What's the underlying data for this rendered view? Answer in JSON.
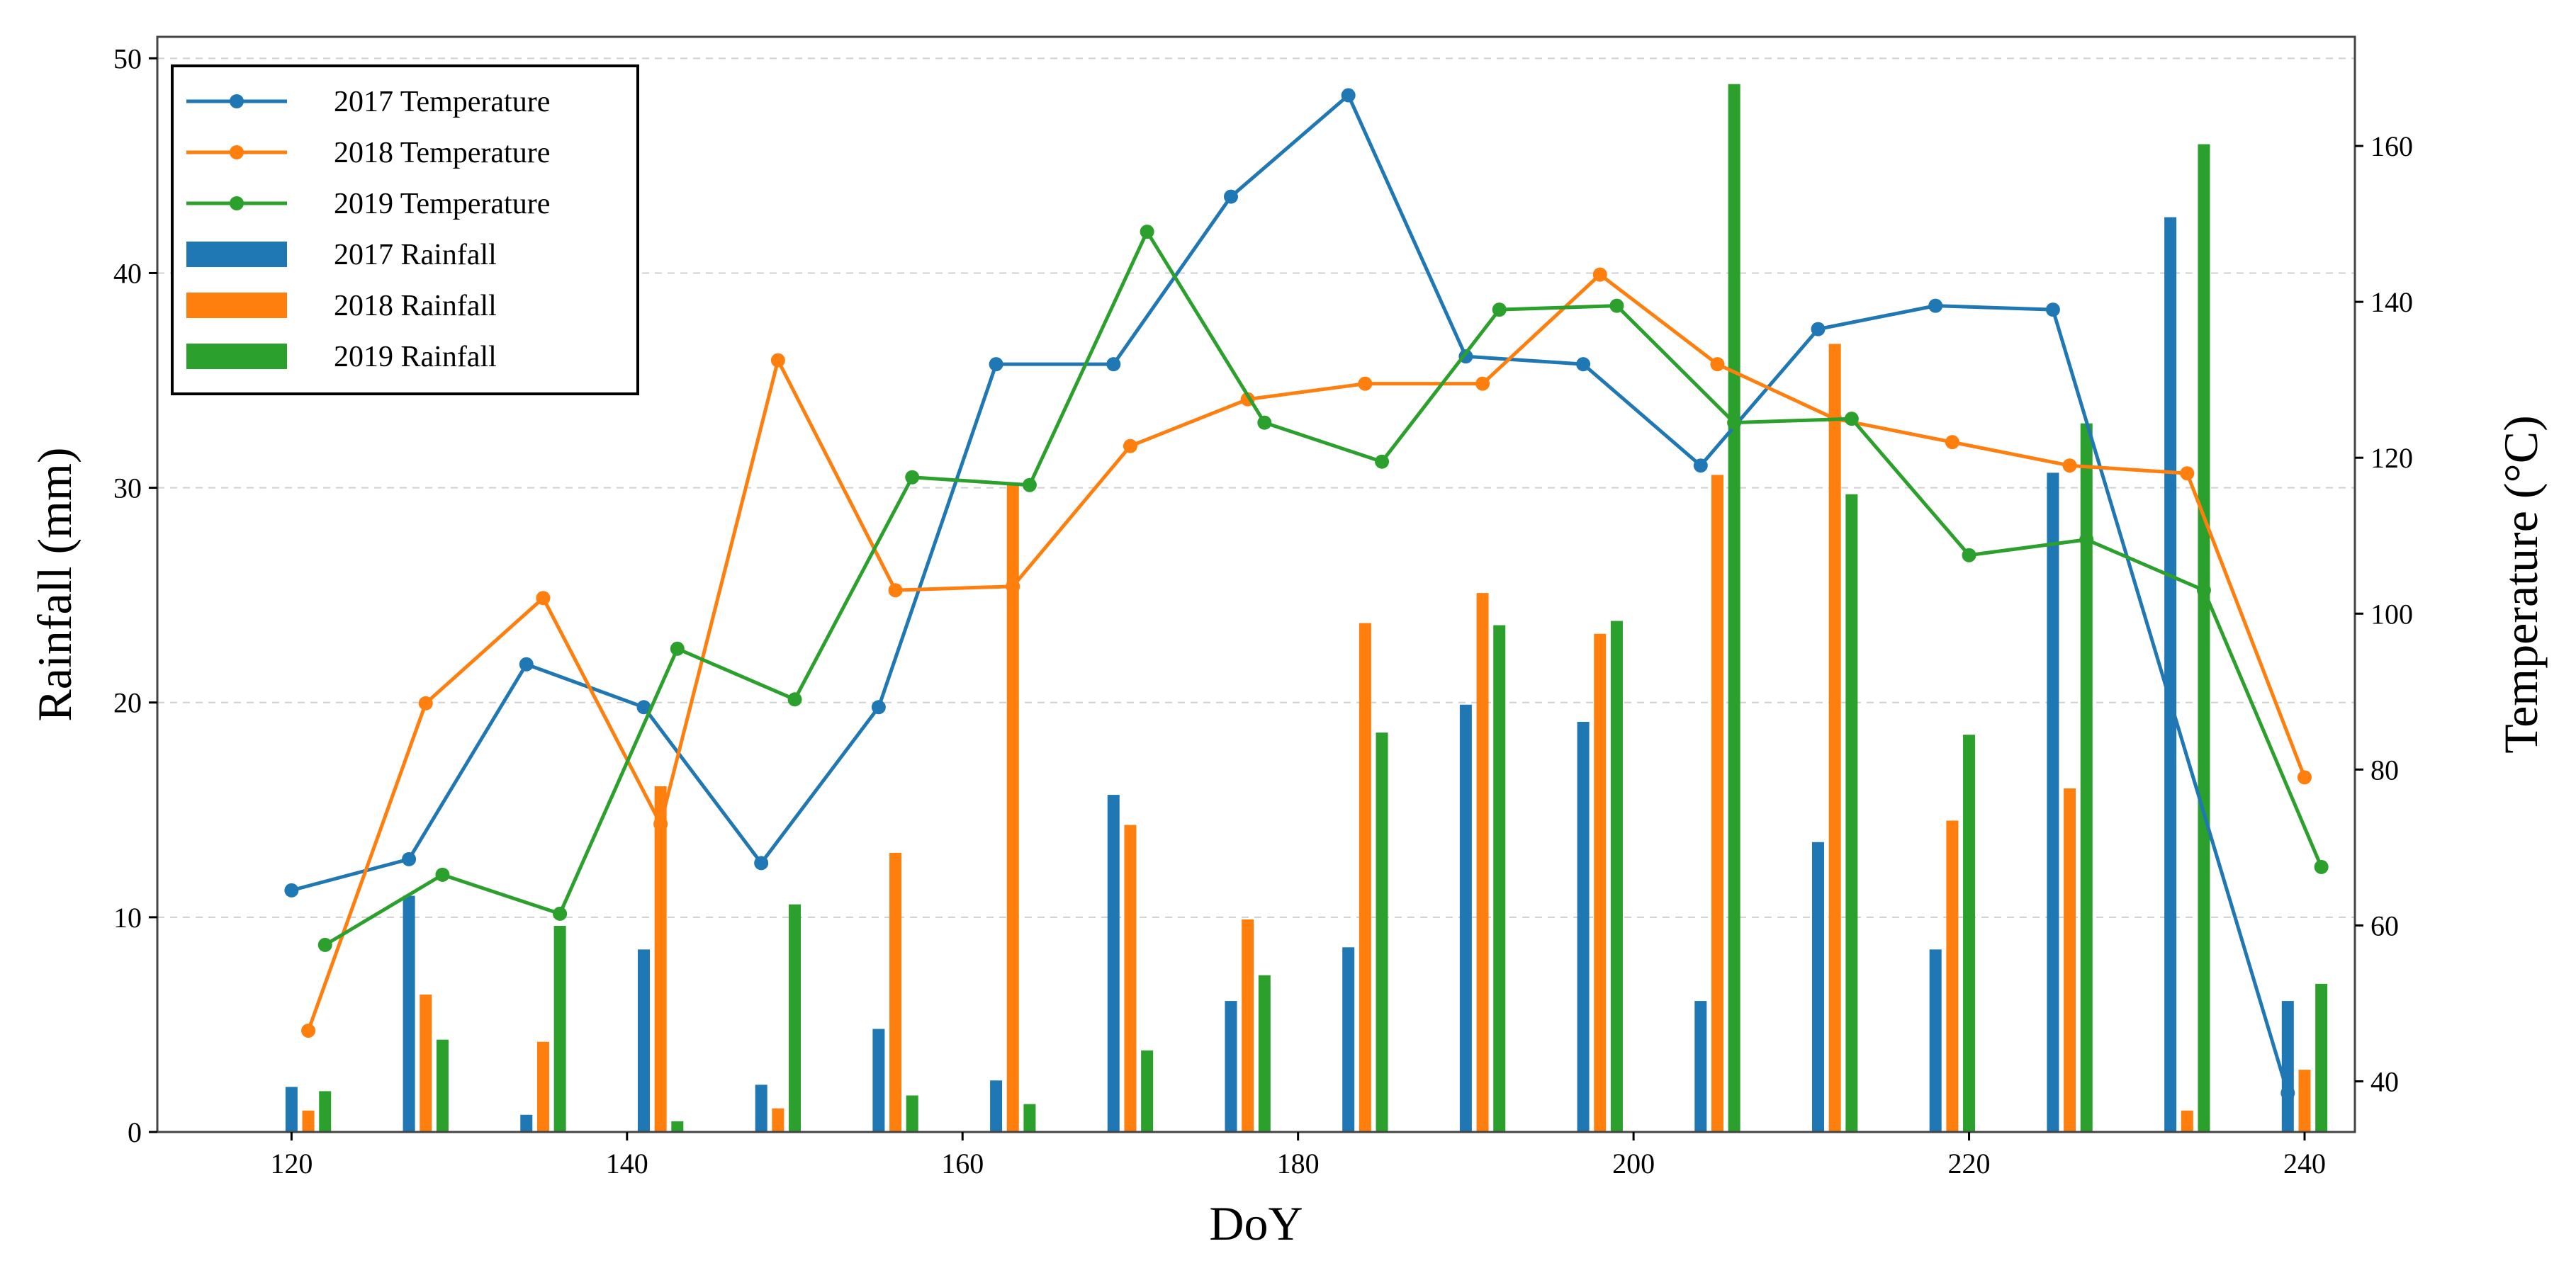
{
  "chart_data": {
    "type": "bar+line",
    "title": "",
    "xlabel": "DoY",
    "ylabel": "Rainfall (mm)",
    "y2label": "Temperature (°C)",
    "xlim": [
      112,
      243
    ],
    "ylim": [
      0,
      51
    ],
    "y2lim": [
      33.5,
      174
    ],
    "x_ticks": [
      120,
      140,
      160,
      180,
      200,
      220,
      240
    ],
    "y_ticks": [
      0,
      10,
      20,
      30,
      40,
      50
    ],
    "y2_ticks": [
      40,
      60,
      80,
      100,
      120,
      140,
      160
    ],
    "grid": "horizontal dashed",
    "legend_position": "top-left",
    "bar_series": [
      {
        "name": "2017 Rainfall",
        "color": "#1f77b4",
        "x": [
          120,
          127,
          134,
          141,
          148,
          155,
          162,
          169,
          176,
          183,
          190,
          197,
          204,
          211,
          218,
          225,
          232,
          239
        ],
        "values": [
          2.1,
          11.0,
          0.8,
          8.5,
          2.2,
          4.8,
          2.4,
          15.7,
          6.1,
          8.6,
          19.9,
          19.1,
          6.1,
          13.5,
          8.5,
          30.7,
          42.6,
          6.1
        ]
      },
      {
        "name": "2018 Rainfall",
        "color": "#ff7f0e",
        "x": [
          121,
          128,
          135,
          142,
          149,
          156,
          163,
          170,
          177,
          184,
          191,
          198,
          205,
          212,
          219,
          226,
          233,
          240
        ],
        "values": [
          1.0,
          6.4,
          4.2,
          16.1,
          1.1,
          13.0,
          30.2,
          14.3,
          9.9,
          23.7,
          25.1,
          23.2,
          30.6,
          36.7,
          14.5,
          16.0,
          1.0,
          2.9
        ]
      },
      {
        "name": "2019 Rainfall",
        "color": "#2ca02c",
        "x": [
          122,
          129,
          136,
          143,
          150,
          157,
          164,
          171,
          178,
          185,
          192,
          199,
          206,
          213,
          220,
          227,
          234,
          241
        ],
        "values": [
          1.9,
          4.3,
          9.6,
          0.5,
          10.6,
          1.7,
          1.3,
          3.8,
          7.3,
          18.6,
          23.6,
          23.8,
          48.8,
          29.7,
          18.5,
          33.0,
          46.0,
          6.9
        ]
      }
    ],
    "line_series": [
      {
        "name": "2017 Temperature",
        "color": "#1f77b4",
        "x": [
          120,
          127,
          134,
          141,
          148,
          155,
          162,
          169,
          176,
          183,
          190,
          197,
          204,
          211,
          218,
          225,
          239
        ],
        "values": [
          64.5,
          68.5,
          93.5,
          88.0,
          68.0,
          88.0,
          132.0,
          132.0,
          153.5,
          166.5,
          133.0,
          132.0,
          119.0,
          136.5,
          139.5,
          139.0,
          38.5
        ]
      },
      {
        "name": "2018 Temperature",
        "color": "#ff7f0e",
        "x": [
          121,
          128,
          135,
          142,
          149,
          156,
          163,
          170,
          177,
          184,
          191,
          198,
          205,
          212,
          219,
          226,
          233,
          240
        ],
        "values": [
          46.5,
          88.5,
          102.0,
          73.0,
          132.5,
          103.0,
          103.5,
          121.5,
          127.5,
          129.5,
          129.5,
          143.5,
          132.0,
          125.0,
          122.0,
          119.0,
          118.0,
          79.0
        ]
      },
      {
        "name": "2019 Temperature",
        "color": "#2ca02c",
        "x": [
          122,
          129,
          136,
          143,
          150,
          157,
          164,
          171,
          178,
          185,
          192,
          199,
          206,
          213,
          220,
          227,
          234,
          241
        ],
        "values": [
          57.5,
          66.5,
          61.5,
          95.5,
          89.0,
          117.5,
          116.5,
          149.0,
          124.5,
          119.5,
          139.0,
          139.5,
          124.5,
          125.0,
          107.5,
          109.5,
          103.0,
          67.5
        ]
      }
    ],
    "legend": [
      "2017 Temperature",
      "2018 Temperature",
      "2019 Temperature",
      "2017 Rainfall",
      "2018 Rainfall",
      "2019 Rainfall"
    ]
  }
}
